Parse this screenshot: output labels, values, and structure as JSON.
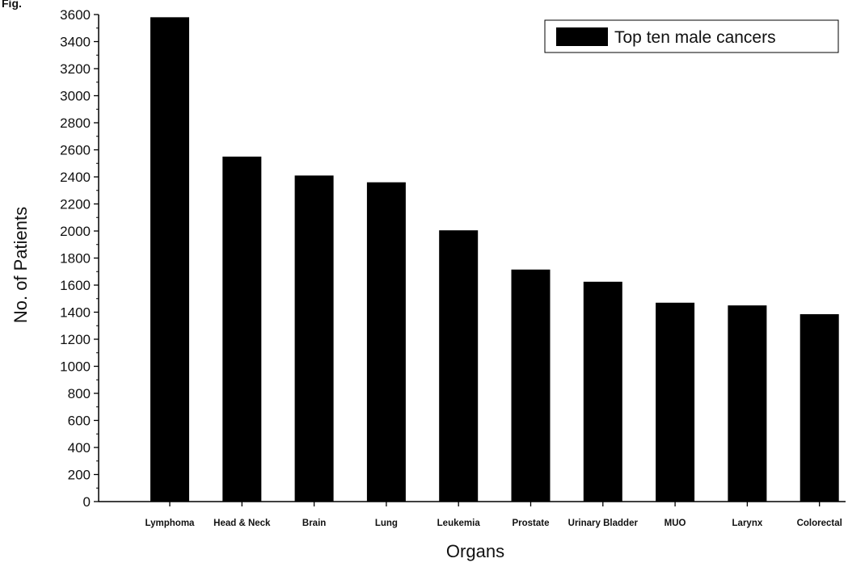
{
  "figure_label": "Fig.",
  "chart_data": {
    "type": "bar",
    "title": "",
    "xlabel": "Organs",
    "ylabel": "No. of Patients",
    "ylim": [
      0,
      3600
    ],
    "ytick_step": 200,
    "yticks": [
      "0",
      "200",
      "400",
      "600",
      "800",
      "1000",
      "1200",
      "1400",
      "1600",
      "1800",
      "2000",
      "2200",
      "2400",
      "2600",
      "2800",
      "3000",
      "3200",
      "3400",
      "3600"
    ],
    "categories": [
      "Lymphoma",
      "Head & Neck",
      "Brain",
      "Lung",
      "Leukemia",
      "Prostate",
      "Urinary Bladder",
      "MUO",
      "Larynx",
      "Colorectal"
    ],
    "series": [
      {
        "name": "Top ten male cancers",
        "color": "#000000",
        "values": [
          3580,
          2550,
          2410,
          2360,
          2005,
          1715,
          1625,
          1470,
          1450,
          1385
        ]
      }
    ],
    "legend_position": "top-right",
    "grid": false
  }
}
